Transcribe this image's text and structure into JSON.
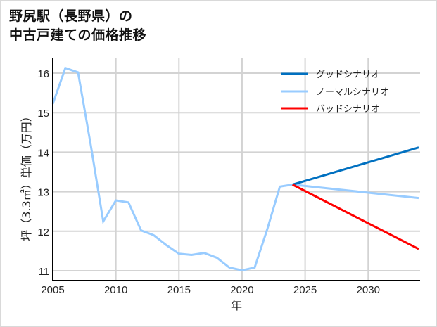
{
  "title": {
    "line1": "野尻駅（長野県）の",
    "line2": "中古戸建ての価格推移"
  },
  "chart_data": {
    "type": "line",
    "title": "野尻駅（長野県）の中古戸建ての価格推移",
    "xlabel": "年",
    "ylabel": "坪（3.3㎡）単価（万円）",
    "xlim": [
      2005,
      2034
    ],
    "ylim": [
      10.75,
      16.4
    ],
    "grid": true,
    "legend_position": "upper right",
    "x_ticks": [
      "2005",
      "2010",
      "2015",
      "2020",
      "2025",
      "2030"
    ],
    "y_ticks": [
      "11",
      "12",
      "13",
      "14",
      "15",
      "16"
    ],
    "series": [
      {
        "name": "ノーマルシナリオ",
        "color": "#99ccff",
        "x": [
          2005,
          2006,
          2007,
          2008,
          2009,
          2010,
          2011,
          2012,
          2013,
          2014,
          2015,
          2016,
          2017,
          2018,
          2019,
          2020,
          2021,
          2022,
          2023,
          2024,
          2034
        ],
        "values": [
          15.22,
          16.13,
          16.02,
          14.2,
          12.25,
          12.78,
          12.73,
          12.02,
          11.9,
          11.65,
          11.43,
          11.4,
          11.45,
          11.33,
          11.08,
          11.01,
          11.08,
          12.05,
          13.13,
          13.18,
          12.84
        ]
      },
      {
        "name": "グッドシナリオ",
        "color": "#0070c0",
        "x": [
          2024,
          2034
        ],
        "values": [
          13.18,
          14.12
        ]
      },
      {
        "name": "バッドシナリオ",
        "color": "#ff0000",
        "x": [
          2024,
          2034
        ],
        "values": [
          13.18,
          11.55
        ]
      }
    ]
  },
  "legend": {
    "good": "グッドシナリオ",
    "normal": "ノーマルシナリオ",
    "bad": "バッドシナリオ"
  },
  "axes": {
    "xlabel": "年",
    "ylabel": "坪（3.3㎡）単価（万円）"
  }
}
